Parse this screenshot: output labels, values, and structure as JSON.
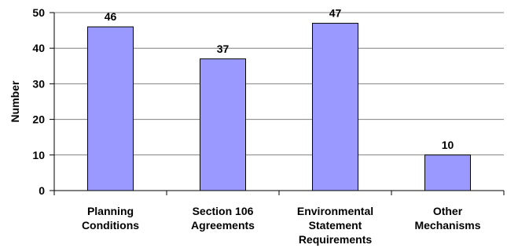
{
  "chart_data": {
    "type": "bar",
    "categories": [
      [
        "Planning",
        "Conditions"
      ],
      [
        "Section 106",
        "Agreements"
      ],
      [
        "Environmental",
        "Statement",
        "Requirements"
      ],
      [
        "Other",
        "Mechanisms"
      ]
    ],
    "values": [
      46,
      37,
      47,
      10
    ],
    "data_labels": [
      "46",
      "37",
      "47",
      "10"
    ],
    "title": "",
    "xlabel": "",
    "ylabel": "Number",
    "ylim": [
      0,
      50
    ],
    "yticks": [
      0,
      10,
      20,
      30,
      40,
      50
    ],
    "grid": "horizontal",
    "legend": "none",
    "colors": {
      "bar": "#9999ff",
      "bar_edge": "#000000",
      "grid": "#808080"
    }
  }
}
